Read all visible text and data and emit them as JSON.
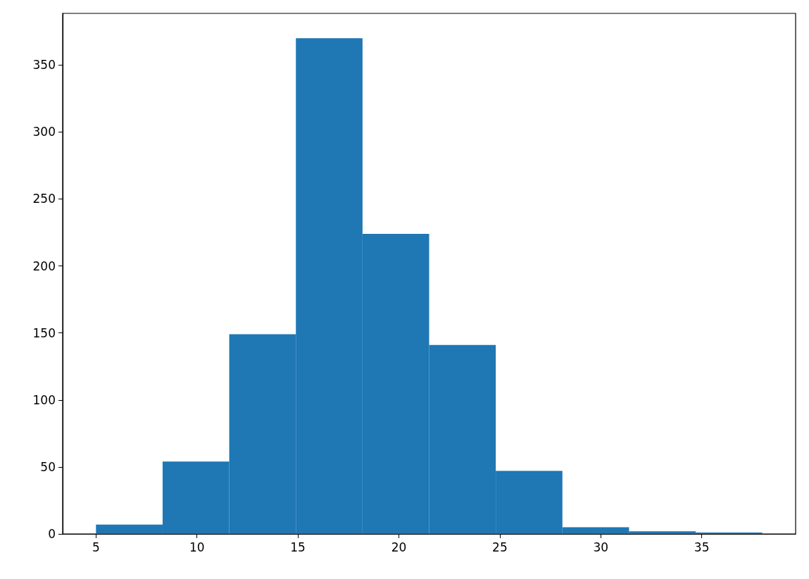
{
  "chart_data": {
    "type": "histogram",
    "bins": [
      5,
      8.3,
      11.6,
      14.9,
      18.2,
      21.5,
      24.8,
      28.1,
      31.4,
      34.7,
      38
    ],
    "values": [
      7,
      54,
      149,
      370,
      224,
      141,
      47,
      5,
      2,
      1
    ],
    "color": "#1f77b4",
    "xlim": [
      3.35,
      39.65
    ],
    "ylim": [
      0,
      388.5
    ],
    "xticks": [
      5,
      10,
      15,
      20,
      25,
      30,
      35
    ],
    "yticks": [
      0,
      50,
      100,
      150,
      200,
      250,
      300,
      350
    ],
    "grid": false
  }
}
